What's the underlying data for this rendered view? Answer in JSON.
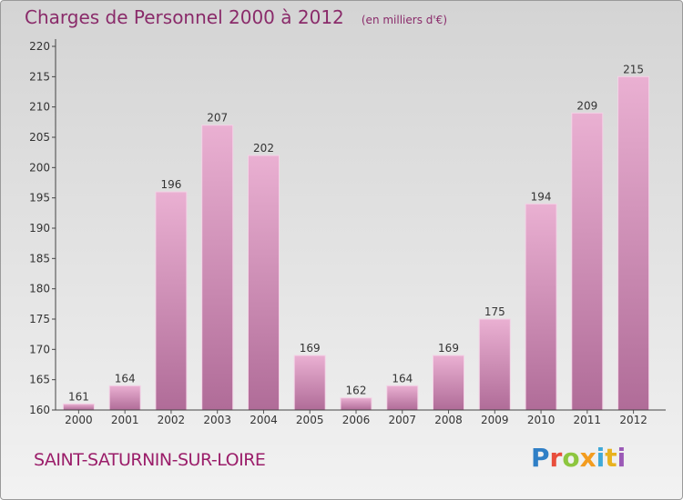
{
  "header": {
    "title": "Charges de Personnel 2000 à 2012",
    "subtitle": "(en milliers d'€)"
  },
  "footer": {
    "commune": "SAINT-SATURNIN-SUR-LOIRE",
    "logo_text": "Proxiti"
  },
  "colors": {
    "bar_light": "#eab0d2",
    "bar_dark": "#b06c98",
    "title": "#8a2b6a",
    "commune": "#9b1e6a"
  },
  "chart_data": {
    "type": "bar",
    "title": "Charges de Personnel 2000 à 2012",
    "subtitle": "(en milliers d'€)",
    "xlabel": "",
    "ylabel": "",
    "categories": [
      "2000",
      "2001",
      "2002",
      "2003",
      "2004",
      "2005",
      "2006",
      "2007",
      "2008",
      "2009",
      "2010",
      "2011",
      "2012"
    ],
    "values": [
      161,
      164,
      196,
      207,
      202,
      169,
      162,
      164,
      169,
      175,
      194,
      209,
      215
    ],
    "ylim": [
      160,
      220
    ],
    "yticks": [
      160,
      165,
      170,
      175,
      180,
      185,
      190,
      195,
      200,
      205,
      210,
      215,
      220
    ],
    "grid": false,
    "legend": "none"
  }
}
